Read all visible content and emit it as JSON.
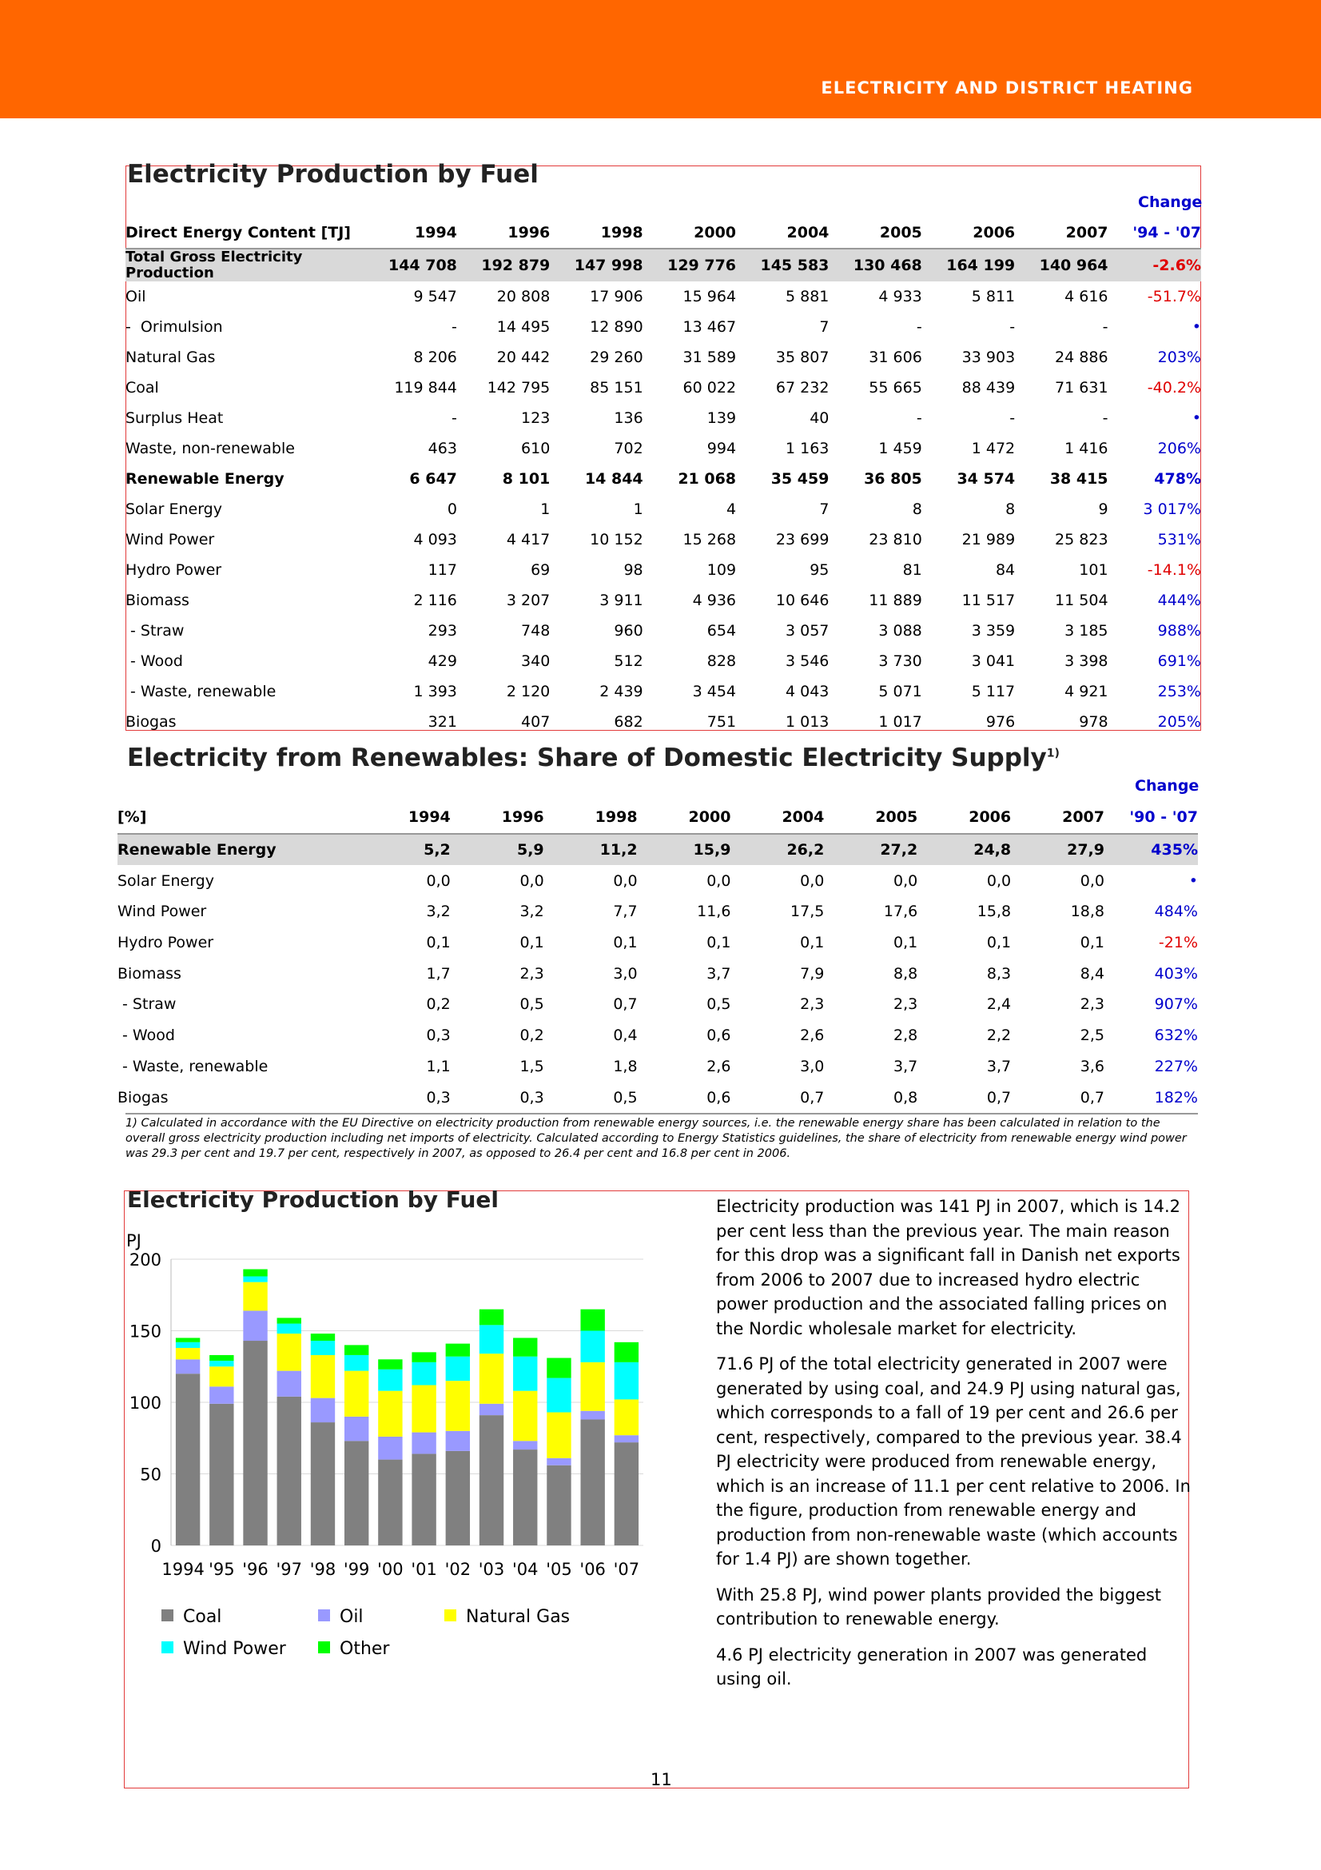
{
  "header": {
    "title": "ELECTRICITY AND DISTRICT HEATING"
  },
  "table1": {
    "title": "Electricity Production by Fuel",
    "change_top": "Change",
    "columns": [
      "Direct Energy Content [TJ]",
      "1994",
      "1996",
      "1998",
      "2000",
      "2004",
      "2005",
      "2006",
      "2007",
      "'94 - '07"
    ],
    "rows": [
      {
        "label": "Total Gross Electricity Production",
        "style": "total",
        "values": [
          "144 708",
          "192 879",
          "147 998",
          "129 776",
          "145 583",
          "130 468",
          "164 199",
          "140 964"
        ],
        "change": "-2.6%",
        "sign": "neg"
      },
      {
        "label": "Oil",
        "values": [
          "9 547",
          "20 808",
          "17 906",
          "15 964",
          "5 881",
          "4 933",
          "5 811",
          "4 616"
        ],
        "change": "-51.7%",
        "sign": "neg"
      },
      {
        "label": "-  Orimulsion",
        "values": [
          "-",
          "14 495",
          "12 890",
          "13 467",
          "7",
          "-",
          "-",
          "-"
        ],
        "change": "•",
        "sign": "pos"
      },
      {
        "label": "Natural Gas",
        "values": [
          "8 206",
          "20 442",
          "29 260",
          "31 589",
          "35 807",
          "31 606",
          "33 903",
          "24 886"
        ],
        "change": "203%",
        "sign": "pos"
      },
      {
        "label": "Coal",
        "values": [
          "119 844",
          "142 795",
          "85 151",
          "60 022",
          "67 232",
          "55 665",
          "88 439",
          "71 631"
        ],
        "change": "-40.2%",
        "sign": "neg"
      },
      {
        "label": "Surplus Heat",
        "values": [
          "-",
          "123",
          "136",
          "139",
          "40",
          "-",
          "-",
          "-"
        ],
        "change": "•",
        "sign": "pos"
      },
      {
        "label": "Waste, non-renewable",
        "values": [
          "463",
          "610",
          "702",
          "994",
          "1 163",
          "1 459",
          "1 472",
          "1 416"
        ],
        "change": "206%",
        "sign": "pos"
      },
      {
        "label": "Renewable Energy",
        "style": "bold",
        "values": [
          "6 647",
          "8 101",
          "14 844",
          "21 068",
          "35 459",
          "36 805",
          "34 574",
          "38 415"
        ],
        "change": "478%",
        "sign": "pos"
      },
      {
        "label": "Solar Energy",
        "values": [
          "0",
          "1",
          "1",
          "4",
          "7",
          "8",
          "8",
          "9"
        ],
        "change": "3 017%",
        "sign": "pos"
      },
      {
        "label": "Wind Power",
        "values": [
          "4 093",
          "4 417",
          "10 152",
          "15 268",
          "23 699",
          "23 810",
          "21 989",
          "25 823"
        ],
        "change": "531%",
        "sign": "pos"
      },
      {
        "label": "Hydro Power",
        "values": [
          "117",
          "69",
          "98",
          "109",
          "95",
          "81",
          "84",
          "101"
        ],
        "change": "-14.1%",
        "sign": "neg"
      },
      {
        "label": "Biomass",
        "values": [
          "2 116",
          "3 207",
          "3 911",
          "4 936",
          "10 646",
          "11 889",
          "11 517",
          "11 504"
        ],
        "change": "444%",
        "sign": "pos"
      },
      {
        "label": " - Straw",
        "values": [
          "293",
          "748",
          "960",
          "654",
          "3 057",
          "3 088",
          "3 359",
          "3 185"
        ],
        "change": "988%",
        "sign": "pos"
      },
      {
        "label": " - Wood",
        "values": [
          "429",
          "340",
          "512",
          "828",
          "3 546",
          "3 730",
          "3 041",
          "3 398"
        ],
        "change": "691%",
        "sign": "pos"
      },
      {
        "label": " - Waste, renewable",
        "values": [
          "1 393",
          "2 120",
          "2 439",
          "3 454",
          "4 043",
          "5 071",
          "5 117",
          "4 921"
        ],
        "change": "253%",
        "sign": "pos"
      },
      {
        "label": "Biogas",
        "values": [
          "321",
          "407",
          "682",
          "751",
          "1 013",
          "1 017",
          "976",
          "978"
        ],
        "change": "205%",
        "sign": "pos"
      }
    ]
  },
  "table2": {
    "title": "Electricity from Renewables: Share of Domestic Electricity Supply",
    "title_sup": "1)",
    "change_top": "Change",
    "columns": [
      "[%]",
      "1994",
      "1996",
      "1998",
      "2000",
      "2004",
      "2005",
      "2006",
      "2007",
      "'90 - '07"
    ],
    "rows": [
      {
        "label": "Renewable Energy",
        "style": "total",
        "values": [
          "5,2",
          "5,9",
          "11,2",
          "15,9",
          "26,2",
          "27,2",
          "24,8",
          "27,9"
        ],
        "change": "435%",
        "sign": "pos"
      },
      {
        "label": "Solar Energy",
        "values": [
          "0,0",
          "0,0",
          "0,0",
          "0,0",
          "0,0",
          "0,0",
          "0,0",
          "0,0"
        ],
        "change": "•",
        "sign": "pos"
      },
      {
        "label": "Wind Power",
        "values": [
          "3,2",
          "3,2",
          "7,7",
          "11,6",
          "17,5",
          "17,6",
          "15,8",
          "18,8"
        ],
        "change": "484%",
        "sign": "pos"
      },
      {
        "label": "Hydro Power",
        "values": [
          "0,1",
          "0,1",
          "0,1",
          "0,1",
          "0,1",
          "0,1",
          "0,1",
          "0,1"
        ],
        "change": "-21%",
        "sign": "neg"
      },
      {
        "label": "Biomass",
        "values": [
          "1,7",
          "2,3",
          "3,0",
          "3,7",
          "7,9",
          "8,8",
          "8,3",
          "8,4"
        ],
        "change": "403%",
        "sign": "pos"
      },
      {
        "label": " - Straw",
        "values": [
          "0,2",
          "0,5",
          "0,7",
          "0,5",
          "2,3",
          "2,3",
          "2,4",
          "2,3"
        ],
        "change": "907%",
        "sign": "pos"
      },
      {
        "label": " - Wood",
        "values": [
          "0,3",
          "0,2",
          "0,4",
          "0,6",
          "2,6",
          "2,8",
          "2,2",
          "2,5"
        ],
        "change": "632%",
        "sign": "pos"
      },
      {
        "label": " - Waste, renewable",
        "values": [
          "1,1",
          "1,5",
          "1,8",
          "2,6",
          "3,0",
          "3,7",
          "3,7",
          "3,6"
        ],
        "change": "227%",
        "sign": "pos"
      },
      {
        "label": "Biogas",
        "values": [
          "0,3",
          "0,3",
          "0,5",
          "0,6",
          "0,7",
          "0,8",
          "0,7",
          "0,7"
        ],
        "change": "182%",
        "sign": "pos"
      }
    ],
    "footnote": "1) Calculated in accordance with the EU Directive on electricity production from renewable energy sources, i.e. the renewable energy share has been calculated in relation to the overall gross electricity production including net imports of electricity. Calculated according to Energy Statistics guidelines, the share of electricity from renewable energy wind power was 29.3 per cent and 19.7 per cent, respectively in 2007, as opposed to 26.4 per cent and 16.8 per cent in 2006."
  },
  "text": {
    "paragraphs": [
      "Electricity production was 141 PJ in 2007, which is 14.2 per cent less than the previous year. The main reason for this drop was a significant fall in Danish net exports from 2006 to 2007 due to increased hydro electric power production and the associated falling prices on the Nordic wholesale market for electricity.",
      "71.6 PJ of the total electricity generated in 2007 were generated by using coal, and 24.9 PJ using natural gas, which corresponds to a fall of 19 per cent and 26.6 per cent, respectively, compared to the previous year. 38.4 PJ electricity were produced from renewable energy, which is an increase of 11.1 per cent relative to 2006. In the figure, production from renewable energy and production from non-renewable waste (which accounts for 1.4 PJ) are shown together.",
      "With 25.8 PJ, wind power plants provided the biggest contribution to renewable energy.",
      "4.6 PJ electricity generation in 2007 was generated using oil."
    ]
  },
  "page_number": "11",
  "chart_data": {
    "type": "bar",
    "stacked": true,
    "title": "Electricity Production by Fuel",
    "ylabel": "PJ",
    "ylim": [
      0,
      200
    ],
    "yticks": [
      "0",
      "50",
      "100",
      "150",
      "200"
    ],
    "categories": [
      "1994",
      "'95",
      "'96",
      "'97",
      "'98",
      "'99",
      "'00",
      "'01",
      "'02",
      "'03",
      "'04",
      "'05",
      "'06",
      "'07"
    ],
    "series": [
      {
        "name": "Coal",
        "color": "#808080",
        "values": [
          120,
          99,
          143,
          104,
          86,
          73,
          60,
          64,
          66,
          91,
          67,
          56,
          88,
          72
        ]
      },
      {
        "name": "Oil",
        "color": "#9999ff",
        "values": [
          10,
          12,
          21,
          18,
          17,
          17,
          16,
          15,
          14,
          8,
          6,
          5,
          6,
          5
        ]
      },
      {
        "name": "Natural Gas",
        "color": "#ffff00",
        "values": [
          8,
          14,
          20,
          26,
          30,
          32,
          32,
          33,
          35,
          35,
          35,
          32,
          34,
          25
        ]
      },
      {
        "name": "Wind Power",
        "color": "#00ffff",
        "values": [
          4,
          4,
          4,
          7,
          10,
          11,
          15,
          16,
          17,
          20,
          24,
          24,
          22,
          26
        ]
      },
      {
        "name": "Other",
        "color": "#00ff00",
        "values": [
          3,
          4,
          5,
          4,
          5,
          7,
          7,
          7,
          9,
          11,
          13,
          14,
          15,
          14
        ]
      }
    ],
    "legend_position": "bottom",
    "grid": true
  }
}
